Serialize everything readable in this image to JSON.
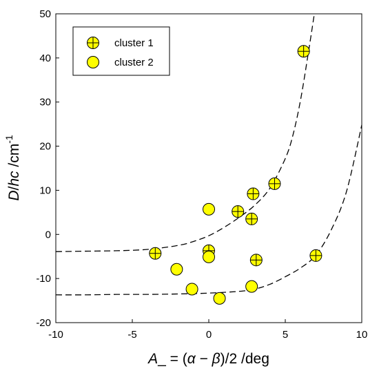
{
  "chart_data": {
    "type": "scatter",
    "xlabel": {
      "parts": [
        "A",
        "_",
        " = (",
        "α",
        " − ",
        "β",
        ")/2 /deg"
      ],
      "italic": [
        true,
        false,
        false,
        true,
        false,
        true,
        false
      ]
    },
    "ylabel": {
      "parts": [
        "D",
        "/",
        "hc",
        " /cm",
        "-1"
      ],
      "italic": [
        true,
        false,
        true,
        false,
        false
      ],
      "superscript": [
        false,
        false,
        false,
        false,
        true
      ]
    },
    "xlim": [
      -10,
      10
    ],
    "ylim": [
      -20,
      50
    ],
    "xticks": [
      -10,
      -5,
      0,
      5,
      10
    ],
    "xtick_labels": [
      "-10",
      "-5",
      "0",
      "5",
      "10"
    ],
    "yticks": [
      -20,
      -10,
      0,
      10,
      20,
      30,
      40,
      50
    ],
    "ytick_labels": [
      "-20",
      "-10",
      "0",
      "10",
      "20",
      "30",
      "40",
      "50"
    ],
    "grid": false,
    "legend_position": "top-left",
    "marker_fill": "#ffff00",
    "marker_edge": "#000000",
    "series": [
      {
        "name": "cluster 1",
        "marker": "circle-cross",
        "x": [
          -3.5,
          0.0,
          1.9,
          2.9,
          2.8,
          4.3,
          6.2,
          3.1,
          7.0
        ],
        "y": [
          -4.3,
          -3.7,
          5.2,
          9.2,
          3.5,
          11.5,
          41.5,
          -5.8,
          -4.8
        ]
      },
      {
        "name": "cluster 2",
        "marker": "circle",
        "x": [
          0.0,
          0.0,
          -2.1,
          -1.1,
          0.7,
          2.8
        ],
        "y": [
          5.7,
          -5.1,
          -7.9,
          -12.4,
          -14.5,
          -11.8
        ]
      }
    ],
    "curves": [
      {
        "style": "dashed",
        "x": [
          -10,
          -8,
          -6,
          -4,
          -2,
          -1,
          0,
          1,
          2,
          3,
          4,
          5,
          5.5,
          6,
          6.5,
          6.9
        ],
        "y": [
          -3.9,
          -3.8,
          -3.7,
          -3.4,
          -2.5,
          -1.6,
          -0.3,
          1.6,
          3.9,
          6.6,
          10.5,
          17.2,
          22.5,
          30.5,
          41.0,
          50.0
        ]
      },
      {
        "style": "dashed",
        "x": [
          -10,
          -8,
          -6,
          -4,
          -2,
          0,
          2,
          3,
          4,
          5,
          6,
          7,
          8,
          9,
          10
        ],
        "y": [
          -13.7,
          -13.7,
          -13.6,
          -13.6,
          -13.5,
          -13.3,
          -12.9,
          -12.4,
          -11.3,
          -9.6,
          -7.6,
          -4.7,
          1.0,
          9.7,
          24.8
        ]
      }
    ]
  }
}
